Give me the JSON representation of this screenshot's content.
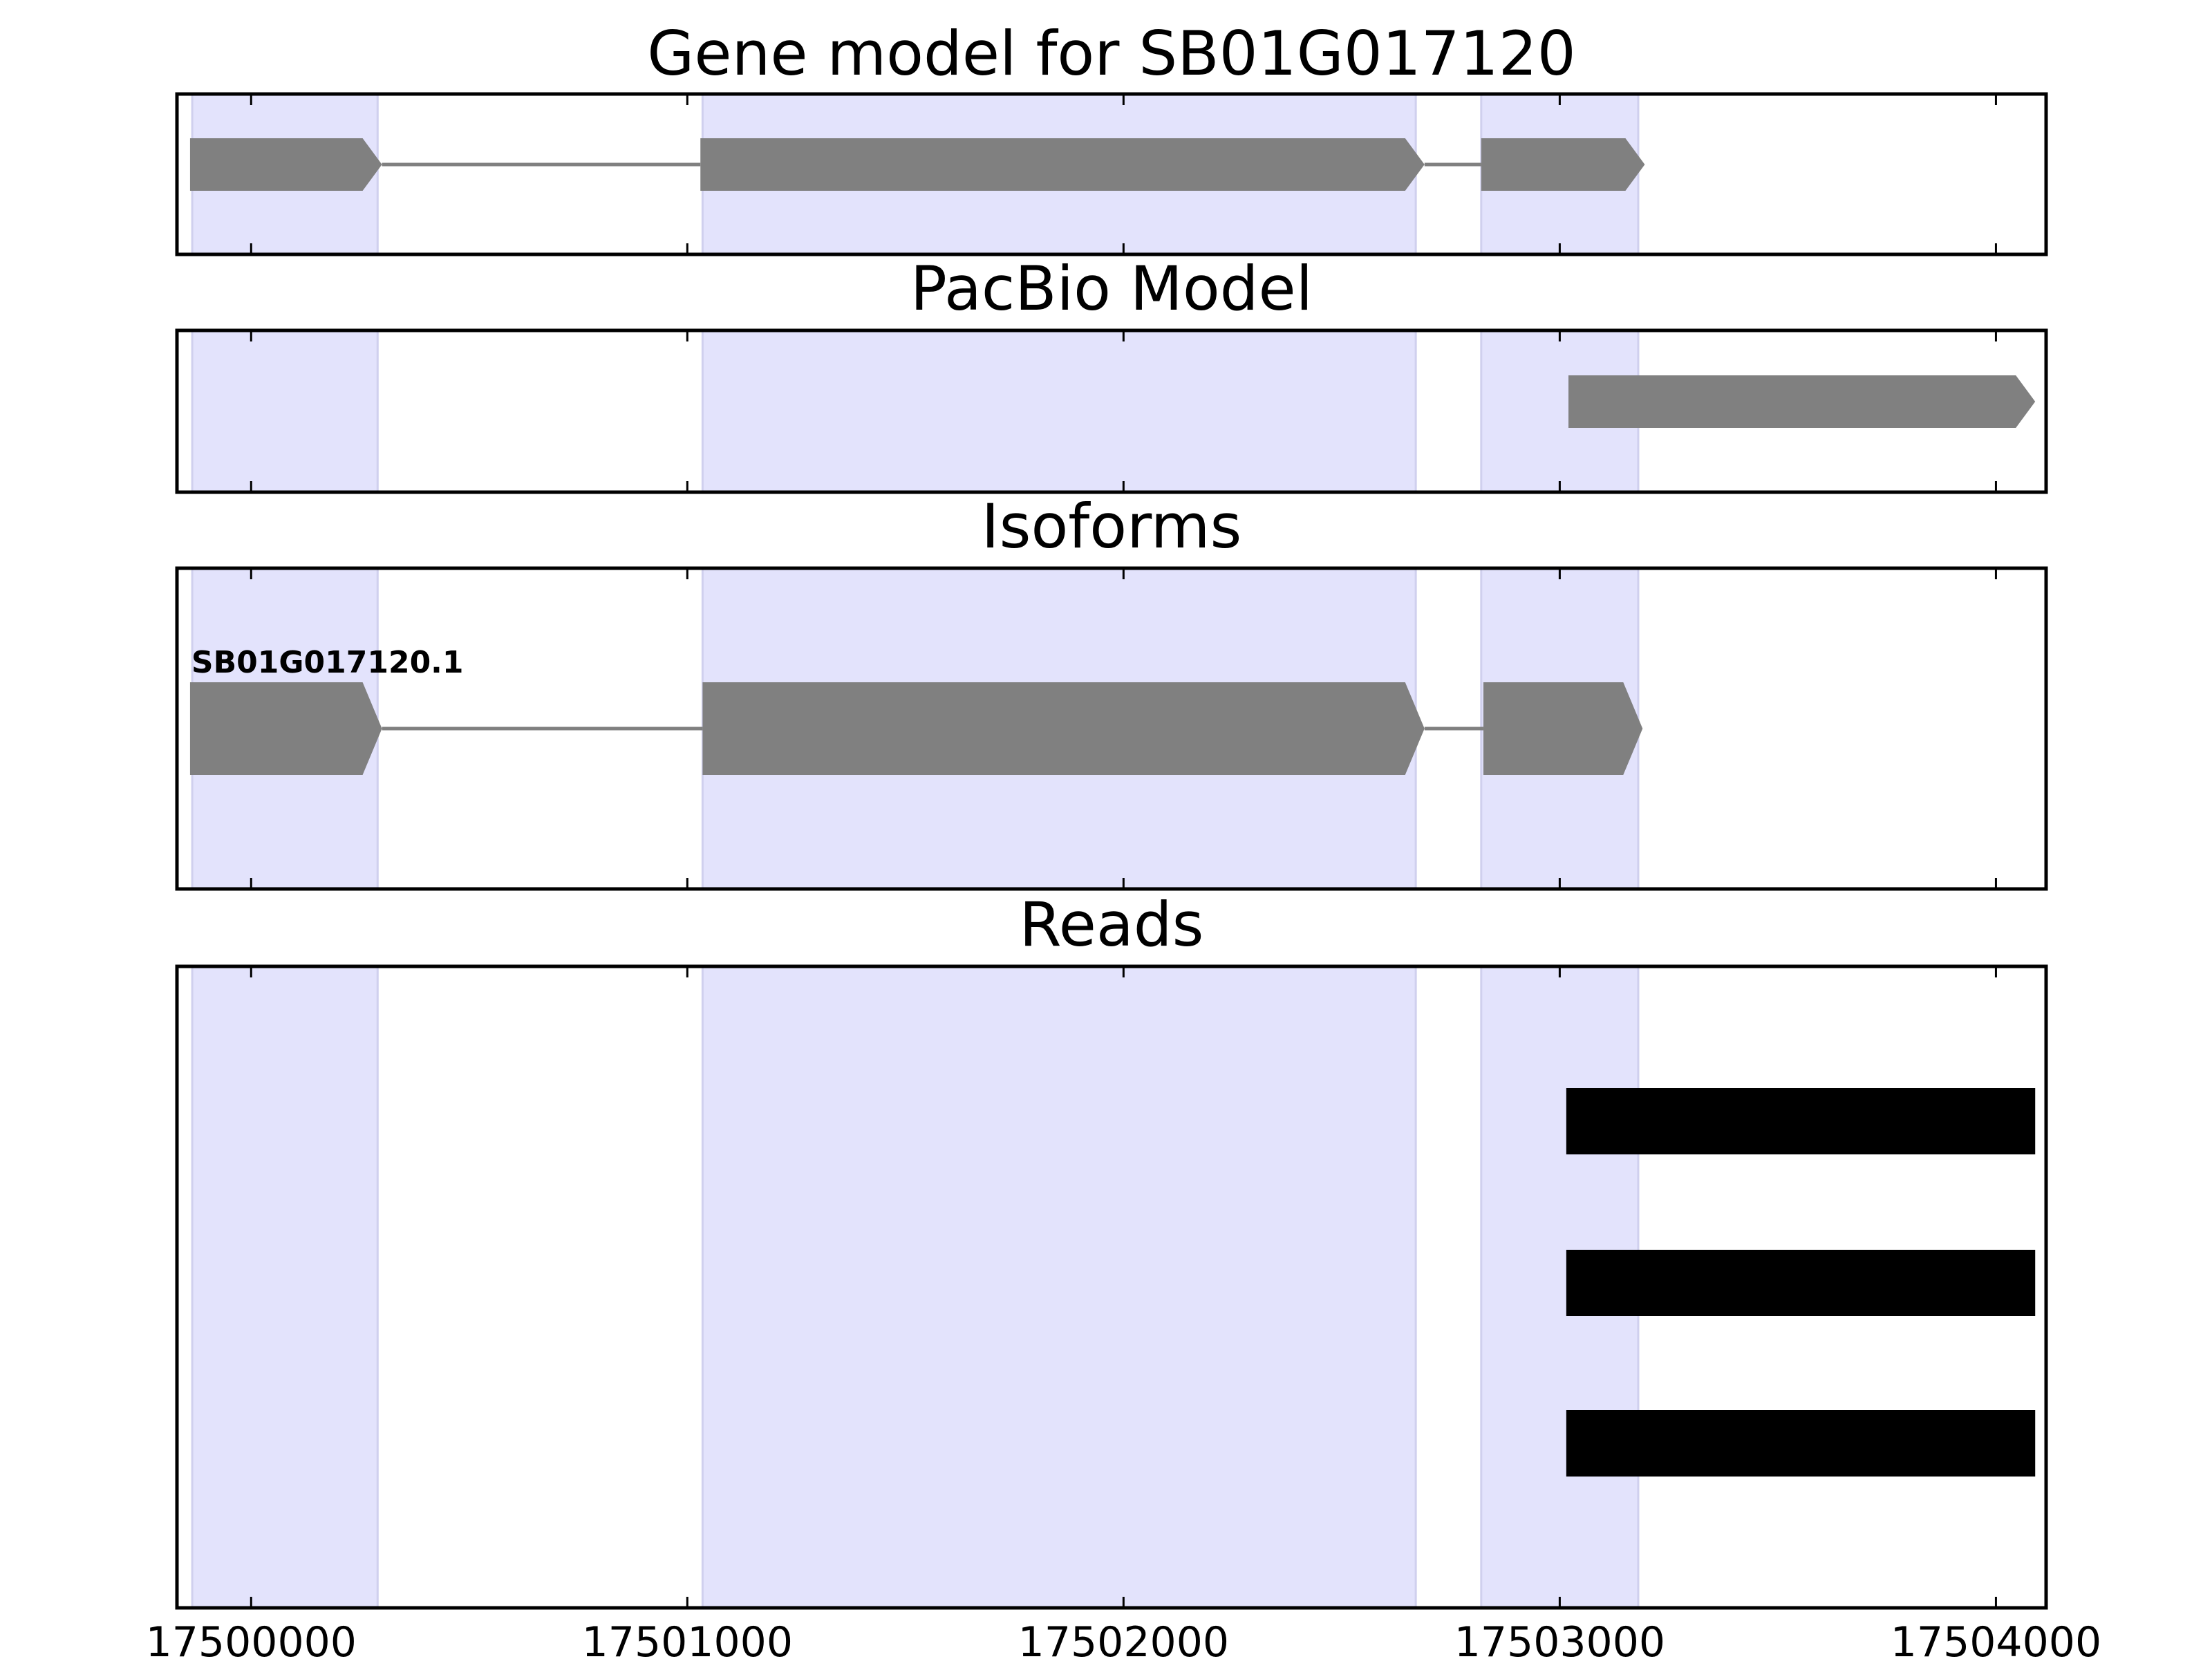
{
  "chart_data": {
    "type": "gene-track",
    "xlim": [
      17499830,
      17504115
    ],
    "xticks": [
      17500000,
      17501000,
      17502000,
      17503000,
      17504000
    ],
    "tick_labels": [
      "17500000",
      "17501000",
      "17502000",
      "17503000",
      "17504000"
    ],
    "highlight_color": "#e3e3fc",
    "feature_color": "#808080",
    "read_color": "#000000",
    "exon_regions": [
      [
        17499865,
        17500290
      ],
      [
        17501035,
        17502670
      ],
      [
        17502820,
        17503180
      ]
    ],
    "panels": [
      {
        "title": "Gene model for SB01G017120",
        "tracks": [
          {
            "label": "",
            "exons": [
              [
                17499860,
                17500300
              ],
              [
                17501030,
                17502690
              ],
              [
                17502820,
                17503195
              ]
            ]
          }
        ]
      },
      {
        "title": "PacBio Model",
        "tracks": [
          {
            "label": "",
            "exons": [
              [
                17503020,
                17504090
              ]
            ]
          }
        ]
      },
      {
        "title": "Isoforms",
        "tracks": [
          {
            "label": "SB01G017120.1",
            "exons": [
              [
                17499860,
                17500300
              ],
              [
                17501035,
                17502690
              ],
              [
                17502825,
                17503190
              ]
            ]
          }
        ]
      },
      {
        "title": "Reads",
        "reads": [
          [
            17503015,
            17504090
          ],
          [
            17503015,
            17504090
          ],
          [
            17503015,
            17504090
          ]
        ]
      }
    ]
  }
}
